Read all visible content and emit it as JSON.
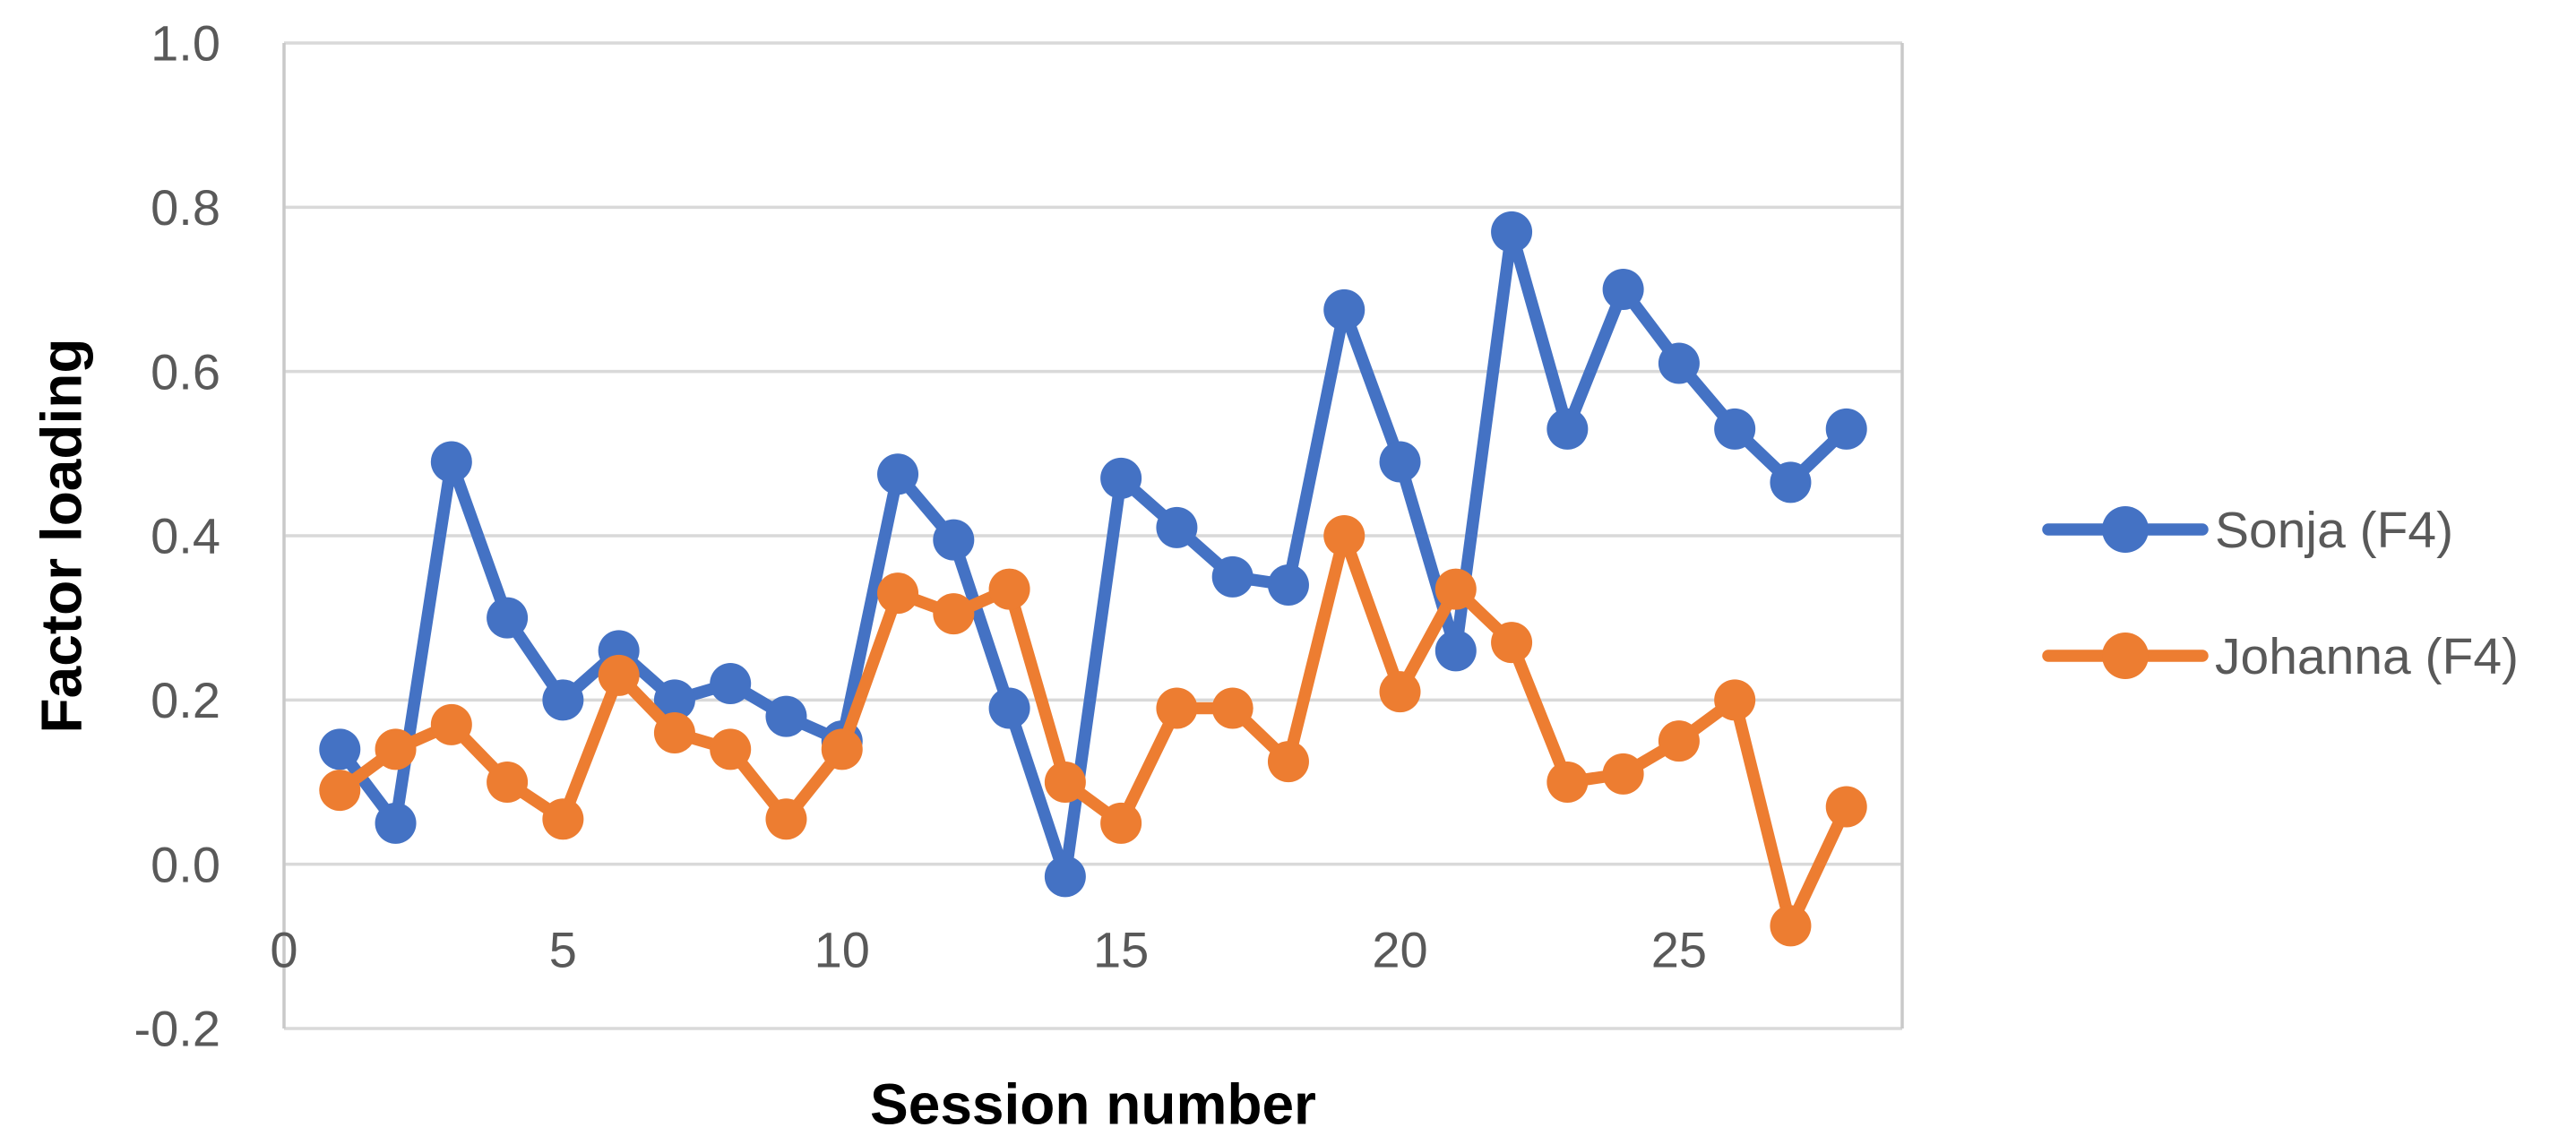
{
  "chart_data": {
    "type": "line",
    "title": "",
    "xlabel": "Session number",
    "ylabel": "Factor loading",
    "x": [
      1,
      2,
      3,
      4,
      5,
      6,
      7,
      8,
      9,
      10,
      11,
      12,
      13,
      14,
      15,
      16,
      17,
      18,
      19,
      20,
      21,
      22,
      23,
      24,
      25,
      26,
      27,
      28
    ],
    "series": [
      {
        "name": "Sonja (F4)",
        "color": "#4472C4",
        "values": [
          0.14,
          0.05,
          0.49,
          0.3,
          0.2,
          0.26,
          0.2,
          0.22,
          0.18,
          0.15,
          0.475,
          0.395,
          0.19,
          -0.015,
          0.47,
          0.41,
          0.35,
          0.34,
          0.675,
          0.49,
          0.26,
          0.77,
          0.53,
          0.7,
          0.61,
          0.53,
          0.465,
          0.53
        ]
      },
      {
        "name": "Johanna (F4)",
        "color": "#ED7D31",
        "values": [
          0.09,
          0.14,
          0.17,
          0.1,
          0.055,
          0.23,
          0.16,
          0.14,
          0.055,
          0.14,
          0.33,
          0.305,
          0.335,
          0.1,
          0.05,
          0.19,
          0.19,
          0.125,
          0.4,
          0.21,
          0.335,
          0.27,
          0.1,
          0.11,
          0.15,
          0.2,
          -0.075,
          0.07
        ]
      }
    ],
    "xlim": [
      0,
      29
    ],
    "ylim": [
      -0.2,
      1.0
    ],
    "xticks": [
      {
        "value": 0,
        "label": "0"
      },
      {
        "value": 5,
        "label": "5"
      },
      {
        "value": 10,
        "label": "10"
      },
      {
        "value": 15,
        "label": "15"
      },
      {
        "value": 20,
        "label": "20"
      },
      {
        "value": 25,
        "label": "25"
      }
    ],
    "yticks": [
      {
        "value": 1.0,
        "label": "1.0"
      },
      {
        "value": 0.8,
        "label": "0.8"
      },
      {
        "value": 0.6,
        "label": "0.6"
      },
      {
        "value": 0.4,
        "label": "0.4"
      },
      {
        "value": 0.2,
        "label": "0.2"
      },
      {
        "value": 0.0,
        "label": "0.0"
      },
      {
        "value": -0.2,
        "label": "-0.2"
      }
    ],
    "grid": true,
    "legend_position": "right",
    "marker": "circle"
  },
  "colors": {
    "gridline": "#D9D9D9",
    "axis_line": "#C9C9C9",
    "tick_label": "#595959",
    "axis_title": "#000000",
    "legend_label": "#595959",
    "background": "#FFFFFF"
  }
}
